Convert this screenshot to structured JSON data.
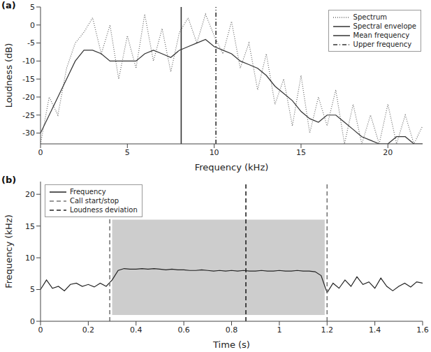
{
  "chart_data": [
    {
      "type": "line",
      "title": "(a)",
      "x_label": "Frequency (kHz)",
      "y_label": "Loudness (dB)",
      "x": [
        0,
        0.5,
        1,
        1.5,
        2,
        2.5,
        3,
        3.5,
        4,
        4.5,
        5,
        5.5,
        6,
        6.5,
        7,
        7.5,
        8,
        8.5,
        9,
        9.5,
        10,
        10.5,
        11,
        11.5,
        12,
        12.5,
        13,
        13.5,
        14,
        14.5,
        15,
        15.5,
        16,
        16.5,
        17,
        17.5,
        18,
        18.5,
        19,
        19.5,
        20,
        20.5,
        21,
        21.5,
        22
      ],
      "series": [
        {
          "name": "Spectrum",
          "color": "#666666",
          "line_style": "dotted",
          "values": [
            -33,
            -20,
            -25,
            -12,
            -5,
            -2,
            2,
            -8,
            0,
            -15,
            -3,
            -12,
            3,
            -10,
            -1,
            -13,
            -2,
            2,
            -5,
            3,
            -3,
            -8,
            1,
            -12,
            -5,
            -18,
            -8,
            -22,
            -15,
            -28,
            -14,
            -30,
            -20,
            -28,
            -18,
            -33,
            -22,
            -33,
            -25,
            -33,
            -22,
            -33,
            -25,
            -33,
            -28
          ]
        },
        {
          "name": "Spectral envelope",
          "color": "#333333",
          "line_style": "solid",
          "values": [
            -30,
            -25,
            -20,
            -15,
            -10,
            -7,
            -7,
            -8,
            -10,
            -10,
            -10,
            -10,
            -8,
            -7,
            -8,
            -9,
            -7,
            -6,
            -5,
            -4,
            -6,
            -7,
            -8,
            -10,
            -11,
            -12,
            -14,
            -17,
            -19,
            -21,
            -24,
            -26,
            -27,
            -25,
            -25,
            -27,
            -29,
            -31,
            -32,
            -33,
            -33,
            -31,
            -31,
            -33,
            -33
          ]
        }
      ],
      "vertical_lines": [
        {
          "name": "Mean frequency",
          "x": [
            8.1
          ],
          "color": "#333333",
          "line_style": "solid"
        },
        {
          "name": "Upper frequency",
          "x": [
            10.1
          ],
          "color": "#333333",
          "line_style": "dashdot"
        }
      ],
      "xlim": [
        0,
        22
      ],
      "xticks": [
        0,
        5,
        10,
        15,
        20
      ],
      "ylim": [
        -33,
        5
      ],
      "yticks": [
        -30,
        -25,
        -20,
        -15,
        -10,
        -5,
        0,
        5
      ],
      "legend": "upper right"
    },
    {
      "type": "line",
      "title": "(b)",
      "x_label": "Time (s)",
      "y_label": "Frequency (kHz)",
      "x": [
        0,
        0.025,
        0.05,
        0.075,
        0.1,
        0.125,
        0.15,
        0.175,
        0.2,
        0.225,
        0.25,
        0.275,
        0.3,
        0.325,
        0.35,
        0.375,
        0.4,
        0.425,
        0.45,
        0.475,
        0.5,
        0.525,
        0.55,
        0.575,
        0.6,
        0.625,
        0.65,
        0.675,
        0.7,
        0.725,
        0.75,
        0.775,
        0.8,
        0.825,
        0.85,
        0.875,
        0.9,
        0.925,
        0.95,
        0.975,
        1,
        1.025,
        1.05,
        1.075,
        1.1,
        1.125,
        1.15,
        1.175,
        1.2,
        1.225,
        1.25,
        1.275,
        1.3,
        1.325,
        1.35,
        1.375,
        1.4,
        1.425,
        1.45,
        1.475,
        1.5,
        1.525,
        1.55,
        1.575,
        1.6
      ],
      "series": [
        {
          "name": "Frequency",
          "color": "#222222",
          "line_style": "solid",
          "values": [
            5,
            6.5,
            5.2,
            5.5,
            4.8,
            5.8,
            6,
            5.5,
            5.8,
            5.4,
            6,
            5.5,
            6.5,
            8,
            8.3,
            8.2,
            8.2,
            8.3,
            8.2,
            8.3,
            8.2,
            8.1,
            8.2,
            8.1,
            8.1,
            8,
            8,
            8.1,
            8,
            7.9,
            8,
            7.9,
            8,
            7.9,
            8,
            7.9,
            7.9,
            8,
            7.9,
            7.9,
            8,
            7.9,
            7.9,
            8,
            7.9,
            7.9,
            7.8,
            7.2,
            4.5,
            6,
            5.2,
            6.5,
            5.5,
            7,
            5.8,
            6.2,
            5.2,
            6.8,
            5.5,
            4.8,
            5.5,
            6,
            5.4,
            6.2,
            6
          ]
        }
      ],
      "vertical_lines": [
        {
          "name": "Call start/stop",
          "x": [
            0.29,
            1.2
          ],
          "color": "#777777",
          "line_style": "dashed"
        },
        {
          "name": "Loudness deviation",
          "x": [
            0.86
          ],
          "color": "#222222",
          "line_style": "dashed"
        }
      ],
      "spectrogram_band": {
        "time": [
          0.3,
          1.19
        ],
        "frequency": [
          1,
          16
        ],
        "color": "#b8b8b8"
      },
      "xlim": [
        0,
        1.6
      ],
      "xticks": [
        0,
        0.2,
        0.4,
        0.6,
        0.8,
        1,
        1.2,
        1.4,
        1.6
      ],
      "ylim": [
        0,
        22
      ],
      "yticks": [
        0,
        5,
        10,
        15,
        20
      ],
      "legend": "upper left"
    }
  ]
}
